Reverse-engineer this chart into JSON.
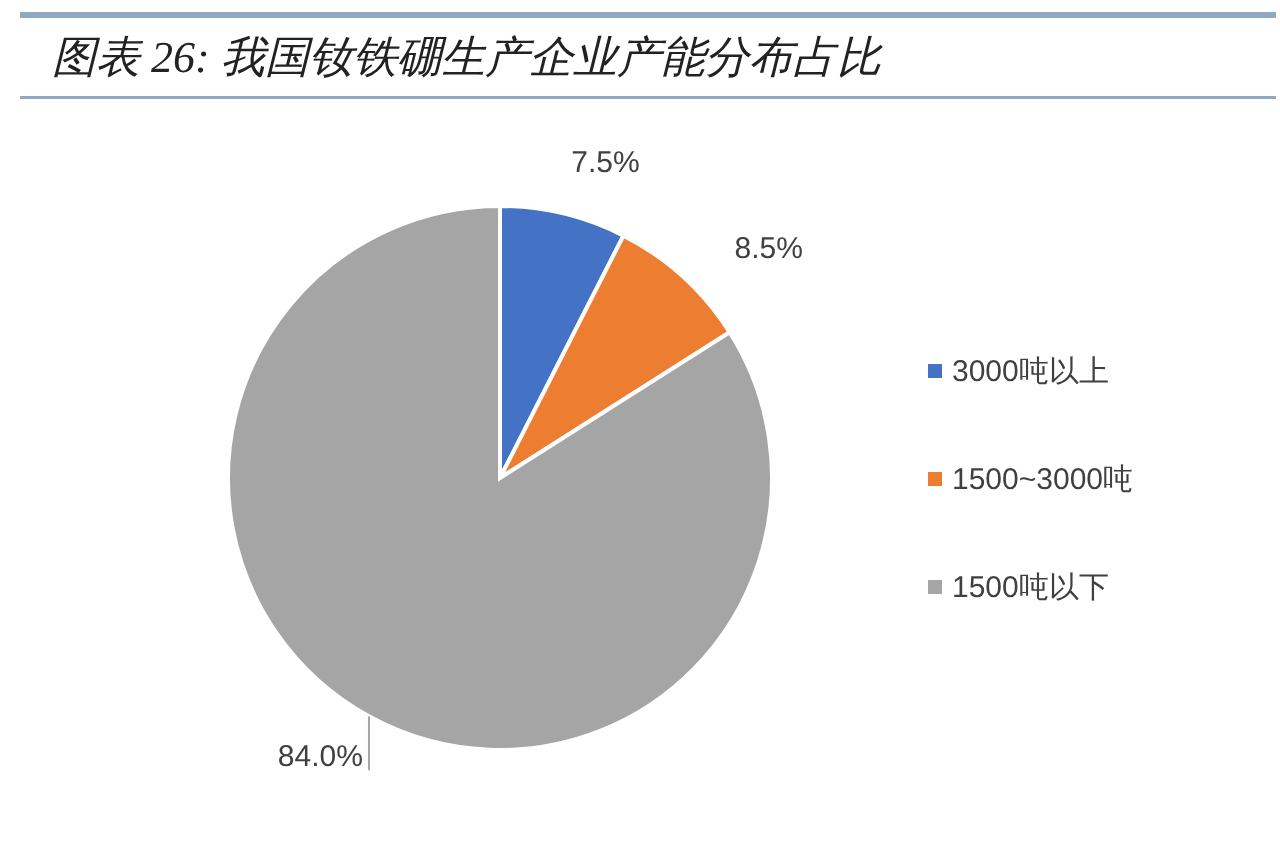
{
  "chart_data": {
    "type": "pie",
    "title": "图表 26: 我国钕铁硼生产企业产能分布占比",
    "categories": [
      "3000吨以上",
      "1500~3000吨",
      "1500吨以下"
    ],
    "values": [
      7.5,
      8.5,
      84.0
    ],
    "colors": [
      "#4472c4",
      "#ed7d31",
      "#a5a5a5"
    ],
    "value_labels": [
      "7.5%",
      "8.5%",
      "84.0%"
    ],
    "legend": "right"
  }
}
